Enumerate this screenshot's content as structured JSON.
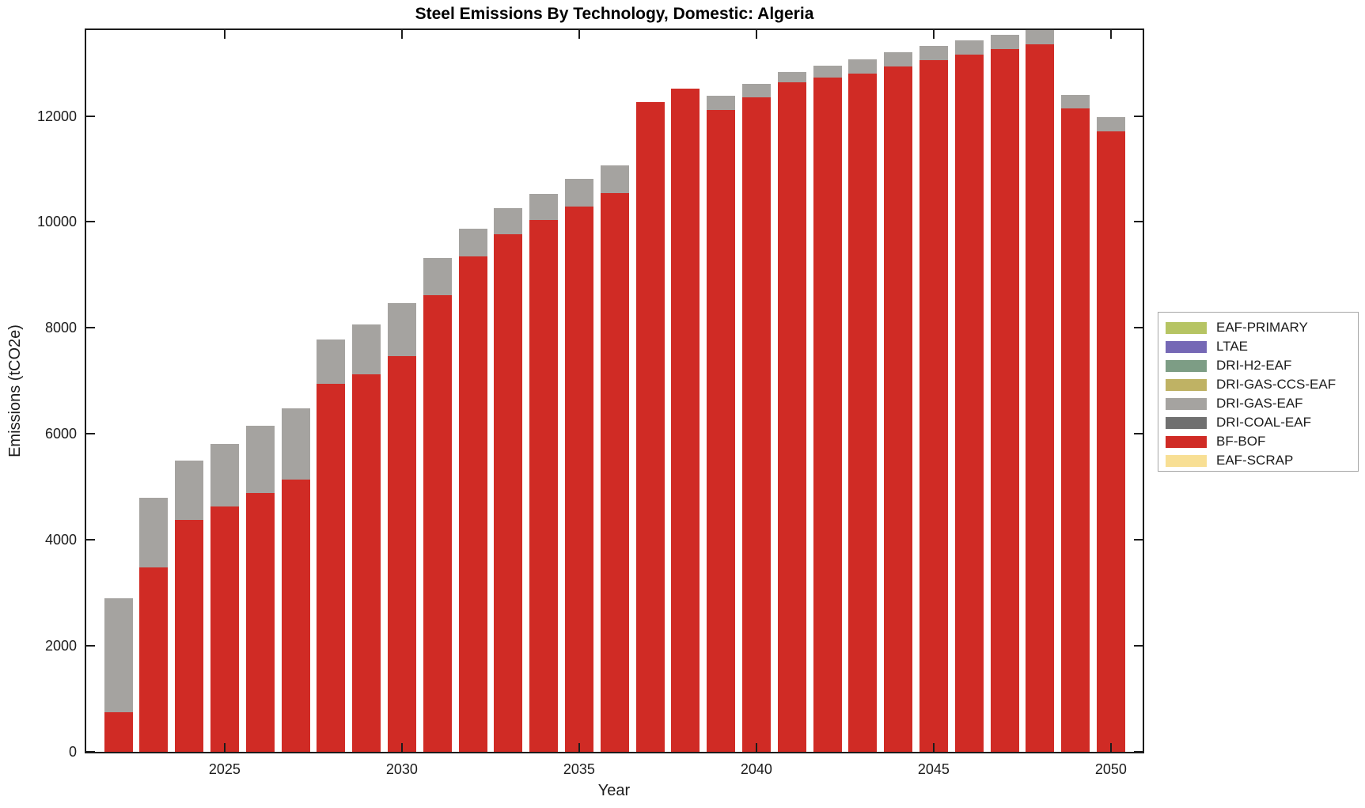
{
  "title": "Steel Emissions By Technology, Domestic: Algeria",
  "axes": {
    "xlabel": "Year",
    "ylabel": "Emissions (tCO2e)"
  },
  "legend": {
    "items": [
      {
        "label": "EAF-PRIMARY",
        "color": "#B6C463"
      },
      {
        "label": "LTAE",
        "color": "#7568B5"
      },
      {
        "label": "DRI-H2-EAF",
        "color": "#7D9D85"
      },
      {
        "label": "DRI-GAS-CCS-EAF",
        "color": "#BFB264"
      },
      {
        "label": "DRI-GAS-EAF",
        "color": "#A5A3A0"
      },
      {
        "label": "DRI-COAL-EAF",
        "color": "#707070"
      },
      {
        "label": "BF-BOF",
        "color": "#D02B25"
      },
      {
        "label": "EAF-SCRAP",
        "color": "#F8DF94"
      }
    ]
  },
  "chart_data": {
    "type": "bar",
    "stacked": true,
    "title": "Steel Emissions By Technology, Domestic: Algeria",
    "xlabel": "Year",
    "ylabel": "Emissions (tCO2e)",
    "grid": false,
    "legend_position": "right-outside",
    "ylim": [
      0,
      13620
    ],
    "yticks": [
      0,
      2000,
      4000,
      6000,
      8000,
      10000,
      12000
    ],
    "xticks": [
      2025,
      2030,
      2035,
      2040,
      2045,
      2050
    ],
    "categories": [
      2022,
      2023,
      2024,
      2025,
      2026,
      2027,
      2028,
      2029,
      2030,
      2031,
      2032,
      2033,
      2034,
      2035,
      2036,
      2037,
      2038,
      2039,
      2040,
      2041,
      2042,
      2043,
      2044,
      2045,
      2046,
      2047,
      2048,
      2049,
      2050
    ],
    "series": [
      {
        "name": "BF-BOF",
        "color": "#D02B25",
        "values": [
          740,
          3485,
          4370,
          4625,
          4890,
          5145,
          6945,
          7125,
          7465,
          8615,
          9350,
          9775,
          10030,
          10290,
          10545,
          12260,
          12520,
          12110,
          12345,
          12630,
          12720,
          12805,
          12930,
          13050,
          13165,
          13265,
          13350,
          12140,
          11715
        ]
      },
      {
        "name": "DRI-GAS-EAF",
        "color": "#A5A3A0",
        "values": [
          2150,
          1305,
          1130,
          1190,
          1265,
          1340,
          830,
          935,
          1000,
          700,
          525,
          490,
          505,
          520,
          525,
          0,
          0,
          265,
          260,
          205,
          235,
          270,
          270,
          275,
          265,
          270,
          290,
          250,
          265
        ]
      }
    ],
    "series_not_visible": [
      "EAF-PRIMARY",
      "LTAE",
      "DRI-H2-EAF",
      "DRI-GAS-CCS-EAF",
      "DRI-COAL-EAF",
      "EAF-SCRAP"
    ]
  }
}
